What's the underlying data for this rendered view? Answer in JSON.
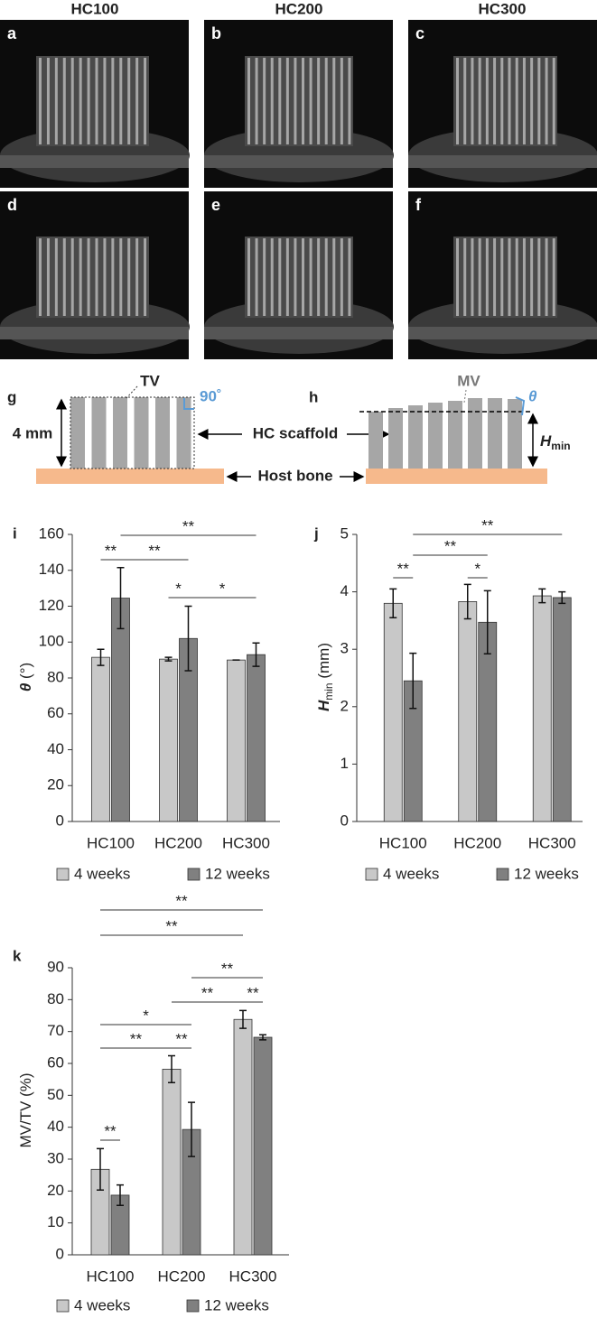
{
  "images": {
    "columns": [
      "HC100",
      "HC200",
      "HC300"
    ],
    "panels": [
      "a",
      "b",
      "c",
      "d",
      "e",
      "f"
    ]
  },
  "schematic": {
    "panels": [
      "g",
      "h"
    ],
    "tv": "TV",
    "right_angle": "90˚",
    "height": "4 mm",
    "scaffold": "HC scaffold",
    "bone": "Host bone",
    "mv": "MV",
    "theta": "θ",
    "hmin": {
      "symbol": "H",
      "subscript": "min"
    }
  },
  "chart_data": [
    {
      "type": "bar",
      "panel": "i",
      "categories": [
        "HC100",
        "HC200",
        "HC300"
      ],
      "series": [
        {
          "name": "4 weeks",
          "color": "#c8c8c8",
          "values": [
            91.5,
            90.5,
            90
          ],
          "errors": [
            4.5,
            1,
            0
          ]
        },
        {
          "name": "12 weeks",
          "color": "#808080",
          "values": [
            124.5,
            102,
            93
          ],
          "errors": [
            17,
            18,
            6.5
          ]
        }
      ],
      "ylim": [
        0,
        160
      ],
      "yticks": [
        0,
        20,
        40,
        60,
        80,
        100,
        120,
        140,
        160
      ],
      "y_label": {
        "symbol": "θ",
        "unit": "(°)"
      },
      "significance": [
        "**",
        "**",
        "**",
        "*",
        "*"
      ]
    },
    {
      "type": "bar",
      "panel": "j",
      "categories": [
        "HC100",
        "HC200",
        "HC300"
      ],
      "series": [
        {
          "name": "4 weeks",
          "color": "#c8c8c8",
          "values": [
            3.8,
            3.83,
            3.93
          ],
          "errors": [
            0.25,
            0.3,
            0.12
          ]
        },
        {
          "name": "12 weeks",
          "color": "#808080",
          "values": [
            2.45,
            3.47,
            3.9
          ],
          "errors": [
            0.48,
            0.55,
            0.1
          ]
        }
      ],
      "ylim": [
        0,
        5
      ],
      "yticks": [
        0,
        1,
        2,
        3,
        4,
        5
      ],
      "y_label": {
        "symbol": "H",
        "subscript": "min",
        "unit": "(mm)"
      },
      "significance": [
        "**",
        "**",
        "**",
        "*"
      ]
    },
    {
      "type": "bar",
      "panel": "k",
      "categories": [
        "HC100",
        "HC200",
        "HC300"
      ],
      "series": [
        {
          "name": "4 weeks",
          "color": "#c8c8c8",
          "values": [
            26.8,
            58.2,
            73.8
          ],
          "errors": [
            6.5,
            4.2,
            2.8
          ]
        },
        {
          "name": "12 weeks",
          "color": "#808080",
          "values": [
            18.7,
            39.3,
            68.2
          ],
          "errors": [
            3.2,
            8.5,
            0.8
          ]
        }
      ],
      "ylim": [
        0,
        90
      ],
      "yticks": [
        0,
        10,
        20,
        30,
        40,
        50,
        60,
        70,
        80,
        90
      ],
      "y_label": {
        "unit": "MV/TV (%)"
      },
      "significance": [
        "**",
        "**",
        "**",
        "**",
        "**",
        "*",
        "**",
        "**",
        "**"
      ]
    }
  ]
}
